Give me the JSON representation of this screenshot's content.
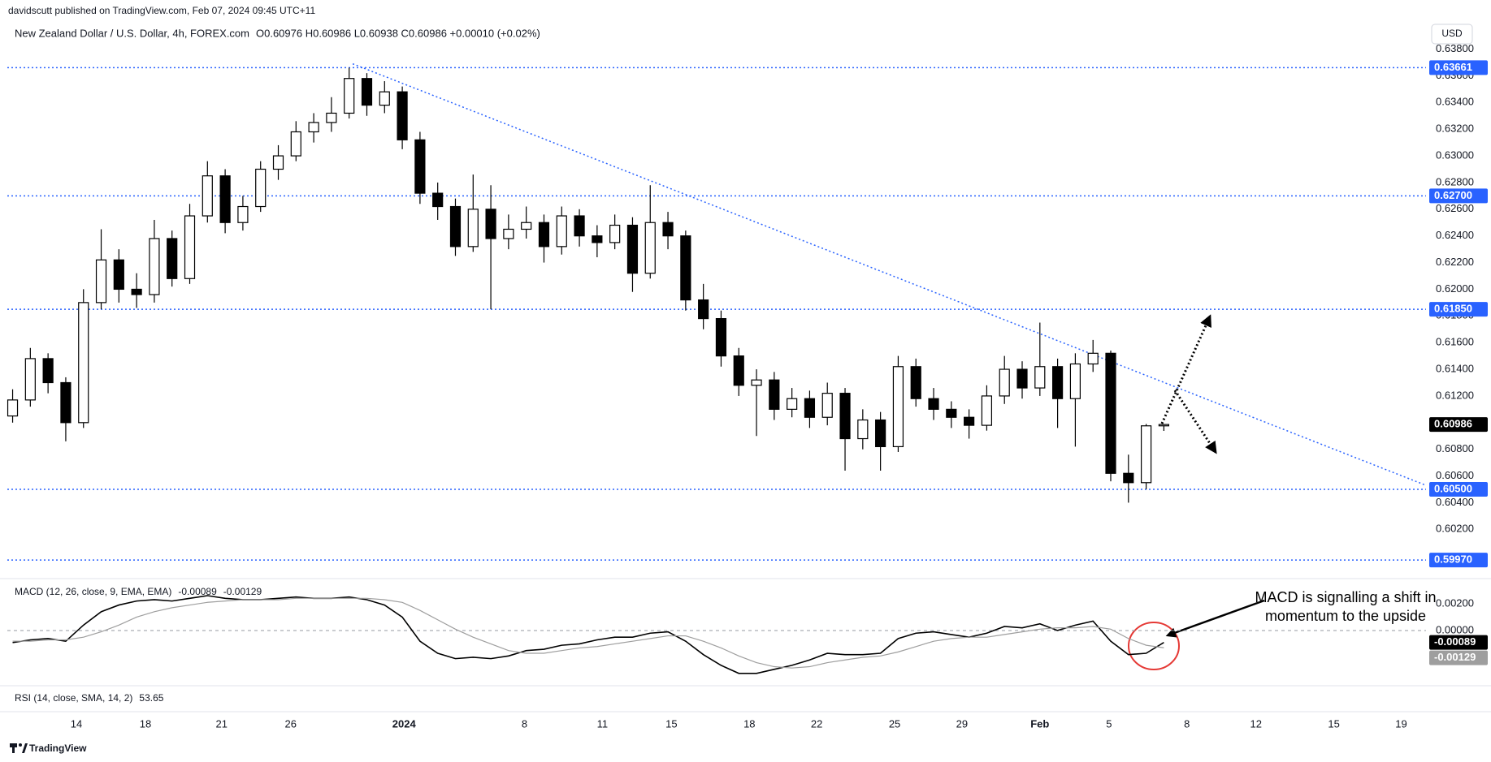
{
  "header": {
    "published": "davidscutt published on TradingView.com, Feb 07, 2024 09:45 UTC+11",
    "currency_button": "USD",
    "footer_logo": "TradingView"
  },
  "chart_data": [
    {
      "type": "candlestick",
      "title": "New Zealand Dollar / U.S. Dollar, 4h, FOREX.com",
      "ohlc_legend": "O0.60976 H0.60986 L0.60938 C0.60986 +0.00010 (+0.02%)",
      "up_color": "#ffffff",
      "down_color": "#000000",
      "outline_color": "#000000",
      "grid": false,
      "candles": [
        [
          0.6105,
          0.6125,
          0.61,
          0.6117
        ],
        [
          0.6117,
          0.6156,
          0.6112,
          0.6148
        ],
        [
          0.6148,
          0.6152,
          0.6122,
          0.613
        ],
        [
          0.613,
          0.6134,
          0.6086,
          0.61
        ],
        [
          0.61,
          0.62,
          0.6096,
          0.619
        ],
        [
          0.619,
          0.6245,
          0.6185,
          0.6222
        ],
        [
          0.6222,
          0.623,
          0.619,
          0.62
        ],
        [
          0.62,
          0.6212,
          0.6186,
          0.6196
        ],
        [
          0.6196,
          0.6252,
          0.619,
          0.6238
        ],
        [
          0.6238,
          0.6244,
          0.6202,
          0.6208
        ],
        [
          0.6208,
          0.6264,
          0.6204,
          0.6255
        ],
        [
          0.6255,
          0.6296,
          0.625,
          0.6285
        ],
        [
          0.6285,
          0.629,
          0.6242,
          0.625
        ],
        [
          0.625,
          0.627,
          0.6244,
          0.6262
        ],
        [
          0.6262,
          0.6296,
          0.6258,
          0.629
        ],
        [
          0.629,
          0.6308,
          0.6282,
          0.63
        ],
        [
          0.63,
          0.6326,
          0.6296,
          0.6318
        ],
        [
          0.6318,
          0.6332,
          0.631,
          0.6325
        ],
        [
          0.6325,
          0.6344,
          0.6318,
          0.6332
        ],
        [
          0.6332,
          0.63661,
          0.6328,
          0.6358
        ],
        [
          0.6358,
          0.6362,
          0.633,
          0.6338
        ],
        [
          0.6338,
          0.6356,
          0.6332,
          0.6348
        ],
        [
          0.6348,
          0.6352,
          0.6305,
          0.6312
        ],
        [
          0.6312,
          0.6318,
          0.6264,
          0.6272
        ],
        [
          0.6272,
          0.628,
          0.6252,
          0.6262
        ],
        [
          0.6262,
          0.6268,
          0.6225,
          0.6232
        ],
        [
          0.6232,
          0.6286,
          0.6228,
          0.626
        ],
        [
          0.626,
          0.6278,
          0.6185,
          0.6238
        ],
        [
          0.6238,
          0.6256,
          0.623,
          0.6245
        ],
        [
          0.6245,
          0.6262,
          0.6238,
          0.625
        ],
        [
          0.625,
          0.6256,
          0.622,
          0.6232
        ],
        [
          0.6232,
          0.6262,
          0.6226,
          0.6255
        ],
        [
          0.6255,
          0.626,
          0.6232,
          0.624
        ],
        [
          0.624,
          0.6248,
          0.6224,
          0.6235
        ],
        [
          0.6235,
          0.6256,
          0.623,
          0.6248
        ],
        [
          0.6248,
          0.6254,
          0.6198,
          0.6212
        ],
        [
          0.6212,
          0.6278,
          0.6208,
          0.625
        ],
        [
          0.625,
          0.6258,
          0.623,
          0.624
        ],
        [
          0.624,
          0.6244,
          0.6184,
          0.6192
        ],
        [
          0.6192,
          0.6204,
          0.617,
          0.6178
        ],
        [
          0.6178,
          0.6184,
          0.6142,
          0.615
        ],
        [
          0.615,
          0.6156,
          0.612,
          0.6128
        ],
        [
          0.6128,
          0.614,
          0.609,
          0.6132
        ],
        [
          0.6132,
          0.6138,
          0.6102,
          0.611
        ],
        [
          0.611,
          0.6126,
          0.6104,
          0.6118
        ],
        [
          0.6118,
          0.6124,
          0.6096,
          0.6104
        ],
        [
          0.6104,
          0.613,
          0.6098,
          0.6122
        ],
        [
          0.6122,
          0.6126,
          0.6064,
          0.6088
        ],
        [
          0.6088,
          0.611,
          0.608,
          0.6102
        ],
        [
          0.6102,
          0.6108,
          0.6064,
          0.6082
        ],
        [
          0.6082,
          0.615,
          0.6078,
          0.6142
        ],
        [
          0.6142,
          0.6148,
          0.6112,
          0.6118
        ],
        [
          0.6118,
          0.6126,
          0.6102,
          0.611
        ],
        [
          0.611,
          0.6116,
          0.6096,
          0.6104
        ],
        [
          0.6104,
          0.611,
          0.6088,
          0.6098
        ],
        [
          0.6098,
          0.6128,
          0.6094,
          0.612
        ],
        [
          0.612,
          0.615,
          0.6114,
          0.614
        ],
        [
          0.614,
          0.6146,
          0.6118,
          0.6126
        ],
        [
          0.6126,
          0.6175,
          0.612,
          0.6142
        ],
        [
          0.6142,
          0.6148,
          0.6096,
          0.6118
        ],
        [
          0.6118,
          0.6152,
          0.6082,
          0.6144
        ],
        [
          0.6144,
          0.6162,
          0.6138,
          0.6152
        ],
        [
          0.6152,
          0.6154,
          0.6056,
          0.6062
        ],
        [
          0.6062,
          0.6076,
          0.604,
          0.6055
        ],
        [
          0.6055,
          0.6099,
          0.605,
          0.60976
        ],
        [
          0.60976,
          0.60986,
          0.60938,
          0.60986
        ]
      ],
      "xlim": [
        -0.3,
        79.8
      ],
      "xticks": [
        {
          "value": 3.6,
          "label": "14"
        },
        {
          "value": 7.5,
          "label": "18"
        },
        {
          "value": 11.8,
          "label": "21"
        },
        {
          "value": 15.7,
          "label": "26"
        },
        {
          "value": 22.1,
          "label": "2024"
        },
        {
          "value": 28.9,
          "label": "8"
        },
        {
          "value": 33.3,
          "label": "11"
        },
        {
          "value": 37.2,
          "label": "15"
        },
        {
          "value": 41.6,
          "label": "18"
        },
        {
          "value": 45.4,
          "label": "22"
        },
        {
          "value": 49.8,
          "label": "25"
        },
        {
          "value": 53.6,
          "label": "29"
        },
        {
          "value": 58,
          "label": "Feb"
        },
        {
          "value": 61.9,
          "label": "5"
        },
        {
          "value": 66.3,
          "label": "8"
        },
        {
          "value": 70.2,
          "label": "12"
        },
        {
          "value": 74.6,
          "label": "15"
        },
        {
          "value": 78.4,
          "label": "19"
        }
      ],
      "ylim": [
        0.59849,
        0.63846
      ],
      "yticks": [
        {
          "value": 0.602,
          "label": "0.60200"
        },
        {
          "value": 0.604,
          "label": "0.60400"
        },
        {
          "value": 0.606,
          "label": "0.60600"
        },
        {
          "value": 0.608,
          "label": "0.60800"
        },
        {
          "value": 0.61,
          "label": "0.61000"
        },
        {
          "value": 0.612,
          "label": "0.61200"
        },
        {
          "value": 0.614,
          "label": "0.61400"
        },
        {
          "value": 0.616,
          "label": "0.61600"
        },
        {
          "value": 0.618,
          "label": "0.61800"
        },
        {
          "value": 0.62,
          "label": "0.62000"
        },
        {
          "value": 0.622,
          "label": "0.62200"
        },
        {
          "value": 0.624,
          "label": "0.62400"
        },
        {
          "value": 0.626,
          "label": "0.62600"
        },
        {
          "value": 0.628,
          "label": "0.62800"
        },
        {
          "value": 0.63,
          "label": "0.63000"
        },
        {
          "value": 0.632,
          "label": "0.63200"
        },
        {
          "value": 0.634,
          "label": "0.63400"
        },
        {
          "value": 0.636,
          "label": "0.63600"
        },
        {
          "value": 0.638,
          "label": "0.63800"
        }
      ],
      "level_color": "#2962ff",
      "levels": [
        {
          "value": 0.63661,
          "label": "0.63661"
        },
        {
          "value": 0.627,
          "label": "0.62700"
        },
        {
          "value": 0.6185,
          "label": "0.61850"
        },
        {
          "value": 0.605,
          "label": "0.60500"
        },
        {
          "value": 0.5997,
          "label": "0.59970"
        }
      ],
      "trendline": {
        "x": [
          19.2,
          79.8
        ],
        "y": [
          0.6369,
          0.6053
        ]
      }
    },
    {
      "type": "line",
      "title": "MACD (12, 26, close, 9, EMA, EMA)",
      "annotation": [
        "MACD is signalling a shift in",
        "momentum to the upside"
      ],
      "ylim": [
        -0.004,
        0.00357
      ],
      "yticks": [
        {
          "value": 0.002,
          "label": "0.00200"
        },
        {
          "value": 0,
          "label": "0.00000"
        }
      ],
      "series": [
        {
          "color": "#000000",
          "values": [
            -0.0009,
            -0.0007,
            -0.0006,
            -0.0008,
            0.0004,
            0.0014,
            0.0019,
            0.0022,
            0.0023,
            0.0022,
            0.0024,
            0.0026,
            0.0024,
            0.0023,
            0.0023,
            0.0024,
            0.0025,
            0.0024,
            0.0024,
            0.0025,
            0.0023,
            0.0019,
            0.001,
            -0.0008,
            -0.0017,
            -0.0021,
            -0.002,
            -0.0021,
            -0.0019,
            -0.0015,
            -0.0014,
            -0.0011,
            -0.001,
            -0.0007,
            -0.0005,
            -0.0005,
            -0.0002,
            -0.0001,
            -0.0008,
            -0.0018,
            -0.0026,
            -0.0032,
            -0.0032,
            -0.0029,
            -0.0026,
            -0.0022,
            -0.0017,
            -0.0018,
            -0.0018,
            -0.0017,
            -0.0006,
            -0.0002,
            -0.0001,
            -0.0003,
            -0.0005,
            -0.0002,
            0.0003,
            0.0002,
            0.0005,
            0.0,
            0.0004,
            0.0007,
            -0.0008,
            -0.0018,
            -0.0017,
            -0.00089
          ]
        },
        {
          "color": "#9e9e9e",
          "values": [
            -0.0008,
            -0.0008,
            -0.0007,
            -0.0007,
            -0.0005,
            -0.0001,
            0.0004,
            0.001,
            0.0014,
            0.0017,
            0.0019,
            0.0021,
            0.0022,
            0.0023,
            0.0023,
            0.0023,
            0.0024,
            0.0024,
            0.0024,
            0.0024,
            0.0024,
            0.0023,
            0.0021,
            0.0015,
            0.0008,
            0.0001,
            -0.0005,
            -0.001,
            -0.0015,
            -0.0017,
            -0.0017,
            -0.0015,
            -0.0013,
            -0.0012,
            -0.001,
            -0.0008,
            -0.0006,
            -0.0004,
            -0.0004,
            -0.0008,
            -0.0013,
            -0.0019,
            -0.0024,
            -0.0027,
            -0.0028,
            -0.0027,
            -0.0024,
            -0.0022,
            -0.002,
            -0.0019,
            -0.0016,
            -0.0012,
            -0.0008,
            -0.0006,
            -0.0005,
            -0.0005,
            -0.0003,
            -0.0001,
            0.0001,
            0.0002,
            0.0002,
            0.0003,
            0.0001,
            -0.0006,
            -0.0011,
            -0.00129
          ]
        }
      ]
    },
    {
      "type": "indicator",
      "title": "RSI (14, close, SMA, 14, 2)",
      "value": 53.65
    }
  ]
}
